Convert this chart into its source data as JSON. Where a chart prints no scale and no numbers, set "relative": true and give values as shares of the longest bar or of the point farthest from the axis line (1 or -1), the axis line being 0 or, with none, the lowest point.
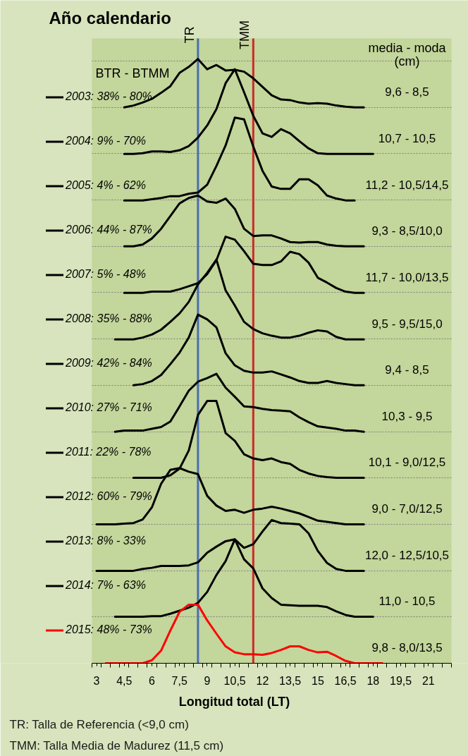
{
  "chart_data": {
    "type": "line",
    "title": "Año calendario",
    "xlabel": "Longitud total (LT)",
    "legend_title": "BTR - BTMM",
    "relative": true,
    "legend": "left",
    "grid": "y",
    "xlim": [
      2.75,
      22.25
    ],
    "xticks": [
      3,
      {
        "value": 4.5,
        "label": "4,5"
      },
      6,
      {
        "value": 7.5,
        "label": "7,5"
      },
      9,
      {
        "value": 10.5,
        "label": "10,5"
      },
      12,
      {
        "value": 13.5,
        "label": "13,5"
      },
      15,
      {
        "value": 16.5,
        "label": "16,5"
      },
      18,
      {
        "value": 19.5,
        "label": "19,5"
      },
      21
    ],
    "x": [
      3,
      3.5,
      4,
      4.5,
      5,
      5.5,
      6,
      6.5,
      7,
      7.5,
      8,
      8.5,
      9,
      9.5,
      10,
      10.5,
      11,
      11.5,
      12,
      12.5,
      13,
      13.5,
      14,
      14.5,
      15,
      15.5,
      16,
      16.5,
      17,
      17.5,
      18,
      18.5
    ],
    "series": [
      {
        "name": "2003: 38% - 80%",
        "color": "#000000",
        "values": [
          null,
          null,
          null,
          0.92,
          0.923,
          0.928,
          0.934,
          0.944,
          0.955,
          0.977,
          0.987,
          1.0,
          0.983,
          0.99,
          0.981,
          0.982,
          0.979,
          0.968,
          0.954,
          0.94,
          0.933,
          0.932,
          0.928,
          0.926,
          0.927,
          0.926,
          0.923,
          0.921,
          0.92,
          0.92,
          null,
          null
        ]
      },
      {
        "name": "2004: 9% - 70%",
        "color": "#000000",
        "values": [
          null,
          null,
          null,
          0.843,
          0.843,
          0.844,
          0.847,
          0.847,
          0.846,
          0.849,
          0.856,
          0.87,
          0.89,
          0.917,
          0.96,
          0.983,
          0.945,
          0.906,
          0.877,
          0.871,
          0.884,
          0.877,
          0.864,
          0.852,
          0.844,
          0.843,
          0.843,
          0.843,
          0.843,
          0.843,
          0.843,
          null
        ]
      },
      {
        "name": "2005: 4% - 62%",
        "color": "#000000",
        "values": [
          null,
          null,
          null,
          0.766,
          0.766,
          0.766,
          0.768,
          0.77,
          0.773,
          0.773,
          0.777,
          0.779,
          0.792,
          0.823,
          0.857,
          0.903,
          0.9,
          0.855,
          0.815,
          0.789,
          0.785,
          0.785,
          0.801,
          0.801,
          0.791,
          0.774,
          0.769,
          0.766,
          0.766,
          null,
          null,
          null
        ]
      },
      {
        "name": "2006: 44% - 87%",
        "color": "#000000",
        "values": [
          null,
          null,
          null,
          0.69,
          0.69,
          0.693,
          0.703,
          0.719,
          0.74,
          0.761,
          0.77,
          0.774,
          0.764,
          0.762,
          0.769,
          0.752,
          0.719,
          0.707,
          0.708,
          0.708,
          0.703,
          0.697,
          0.696,
          0.697,
          0.697,
          0.693,
          0.691,
          0.69,
          0.69,
          0.69,
          null,
          null
        ]
      },
      {
        "name": "2007: 5% - 48%",
        "color": "#000000",
        "values": [
          null,
          null,
          null,
          0.613,
          0.613,
          0.613,
          0.615,
          0.615,
          0.615,
          0.619,
          0.624,
          0.629,
          0.644,
          0.667,
          0.706,
          0.701,
          0.682,
          0.661,
          0.659,
          0.659,
          0.665,
          0.681,
          0.677,
          0.663,
          0.638,
          0.63,
          0.621,
          0.615,
          0.613,
          0.613,
          null,
          null
        ]
      },
      {
        "name": "2008: 35% - 88%",
        "color": "#000000",
        "values": [
          null,
          null,
          0.536,
          0.536,
          0.536,
          0.539,
          0.544,
          0.552,
          0.565,
          0.579,
          0.598,
          0.627,
          0.646,
          0.668,
          0.617,
          0.592,
          0.565,
          0.553,
          0.546,
          0.542,
          0.539,
          0.539,
          0.542,
          0.547,
          0.551,
          0.549,
          0.54,
          0.536,
          0.536,
          0.536,
          null,
          null
        ]
      },
      {
        "name": "2009: 42% - 84%",
        "color": "#000000",
        "values": [
          null,
          null,
          null,
          null,
          0.46,
          0.462,
          0.467,
          0.477,
          0.495,
          0.514,
          0.539,
          0.577,
          0.569,
          0.556,
          0.513,
          0.493,
          0.484,
          0.481,
          0.481,
          0.483,
          0.478,
          0.473,
          0.467,
          0.464,
          0.464,
          0.467,
          0.464,
          0.462,
          0.46,
          0.46,
          null,
          null
        ]
      },
      {
        "name": "2010: 27% - 71%",
        "color": "#000000",
        "values": [
          null,
          null,
          0.383,
          0.385,
          0.385,
          0.385,
          0.388,
          0.391,
          0.4,
          0.425,
          0.451,
          0.466,
          0.472,
          0.479,
          0.456,
          0.441,
          0.425,
          0.424,
          0.421,
          0.419,
          0.418,
          0.417,
          0.407,
          0.399,
          0.392,
          0.39,
          0.388,
          0.385,
          0.385,
          0.383,
          null,
          null
        ]
      },
      {
        "name": "2011: 22% - 78%",
        "color": "#000000",
        "values": [
          null,
          null,
          null,
          null,
          0.307,
          0.307,
          0.307,
          0.307,
          0.311,
          0.322,
          0.352,
          0.411,
          0.434,
          0.434,
          0.381,
          0.368,
          0.346,
          0.339,
          0.336,
          0.339,
          0.333,
          0.33,
          0.32,
          0.314,
          0.31,
          0.308,
          0.307,
          0.307,
          0.307,
          0.307,
          null,
          null
        ]
      },
      {
        "name": "2012: 60% - 79%",
        "color": "#000000",
        "values": [
          0.23,
          0.23,
          0.23,
          0.231,
          0.232,
          0.238,
          0.258,
          0.297,
          0.32,
          0.323,
          0.317,
          0.313,
          0.277,
          0.261,
          0.252,
          0.254,
          0.249,
          0.254,
          0.256,
          0.259,
          0.256,
          0.252,
          0.248,
          0.242,
          0.236,
          0.234,
          0.232,
          0.23,
          0.23,
          0.23,
          null,
          null
        ]
      },
      {
        "name": "2013: 8% - 33%",
        "color": "#000000",
        "values": [
          0.153,
          0.153,
          0.153,
          0.153,
          0.153,
          0.156,
          0.158,
          0.161,
          0.161,
          0.161,
          0.162,
          0.167,
          0.183,
          0.193,
          0.202,
          0.205,
          0.191,
          0.197,
          0.218,
          0.237,
          0.232,
          0.231,
          0.23,
          0.215,
          0.186,
          0.166,
          0.156,
          0.153,
          0.153,
          0.153,
          null,
          null
        ]
      },
      {
        "name": "2014: 7% - 63%",
        "color": "#000000",
        "values": [
          null,
          null,
          0.077,
          0.077,
          0.077,
          0.077,
          0.078,
          0.078,
          0.082,
          0.087,
          0.092,
          0.1,
          0.118,
          0.146,
          0.169,
          0.205,
          0.172,
          0.157,
          0.124,
          0.108,
          0.097,
          0.096,
          0.095,
          0.095,
          0.095,
          0.093,
          0.086,
          0.08,
          0.077,
          0.077,
          0.077,
          null
        ]
      },
      {
        "name": "2015: 48% - 73%",
        "color": "#ff0000",
        "values": [
          null,
          0,
          0,
          0,
          0,
          0,
          0.005,
          0.021,
          0.054,
          0.085,
          0.097,
          0.097,
          0.071,
          0.049,
          0.028,
          0.018,
          0.015,
          0.015,
          0.014,
          0.017,
          0.022,
          0.028,
          0.028,
          0.022,
          0.018,
          0.019,
          0.012,
          0.004,
          0,
          0,
          0,
          0
        ]
      }
    ],
    "ref_lines": [
      {
        "axis": "x",
        "value": 8.5,
        "label": "TR",
        "color": "#4a6fb0"
      },
      {
        "axis": "x",
        "value": 11.5,
        "label": "TMM",
        "color": "#cc2a2a"
      }
    ],
    "annotations": [
      "media - moda\n(cm)",
      "9,6 - 8,5",
      "10,7 - 10,5",
      "11,2 - 10,5/14,5",
      "9,3 - 8,5/10,0",
      "11,7 - 10,0/13,5",
      "9,5 - 9,5/15,0",
      "9,4 - 8,5",
      "10,3 - 9,5",
      "10,1 - 9,0/12,5",
      "9,0 - 7,0/12,5",
      "12,0 - 12,5/10,5",
      "11,0 - 10,5",
      "9,8 - 8,0/13,5",
      "TR: Talla de Referencia (<9,0 cm)",
      "TMM: Talla Media de Madurez (11,5 cm)"
    ]
  }
}
